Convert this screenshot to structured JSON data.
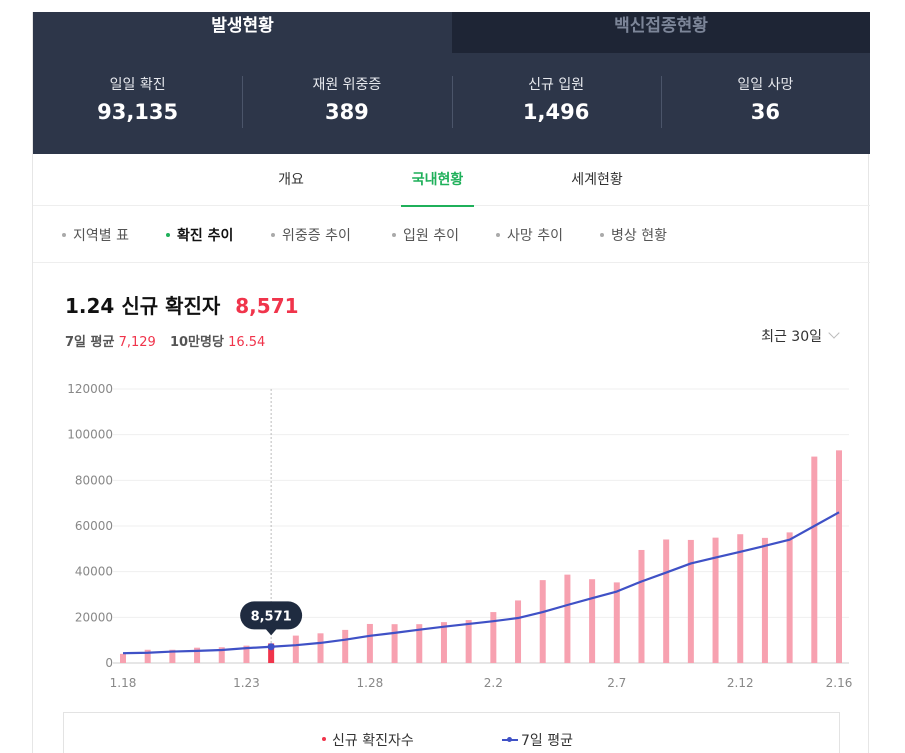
{
  "header": {
    "tabs": [
      {
        "label": "발생현황",
        "active": true
      },
      {
        "label": "백신접종현황",
        "active": false
      }
    ],
    "stats": [
      {
        "label": "일일 확진",
        "value": "93,135"
      },
      {
        "label": "재원 위중증",
        "value": "389"
      },
      {
        "label": "신규 입원",
        "value": "1,496"
      },
      {
        "label": "일일 사망",
        "value": "36"
      }
    ]
  },
  "subtabs": [
    {
      "label": "개요",
      "active": false
    },
    {
      "label": "국내현황",
      "active": true
    },
    {
      "label": "세계현황",
      "active": false
    }
  ],
  "filters": [
    {
      "label": "지역별 표",
      "active": false
    },
    {
      "label": "확진 추이",
      "active": true
    },
    {
      "label": "위중증 추이",
      "active": false
    },
    {
      "label": "입원 추이",
      "active": false
    },
    {
      "label": "사망 추이",
      "active": false
    },
    {
      "label": "병상 현황",
      "active": false
    }
  ],
  "summary": {
    "date": "1.24",
    "title": "신규 확진자",
    "value": "8,571",
    "avg_label": "7일 평균",
    "avg_value": "7,129",
    "per_label": "10만명당",
    "per_value": "16.54"
  },
  "range_selector": {
    "label": "최근 30일"
  },
  "colors": {
    "header_bg": "#2d3649",
    "accent_green": "#1fb05a",
    "highlight_red": "#f0344b",
    "bar_pink": "#f7a1b0",
    "line_blue": "#3f51c6",
    "tooltip_bg": "#1f2b40"
  },
  "chart_data": {
    "type": "bar",
    "categories": [
      "1.18",
      "1.19",
      "1.20",
      "1.21",
      "1.22",
      "1.23",
      "1.24",
      "1.25",
      "1.26",
      "1.27",
      "1.28",
      "1.29",
      "1.30",
      "1.31",
      "2.1",
      "2.2",
      "2.3",
      "2.4",
      "2.5",
      "2.6",
      "2.7",
      "2.8",
      "2.9",
      "2.10",
      "2.11",
      "2.12",
      "2.13",
      "2.14",
      "2.15",
      "2.16"
    ],
    "x_tick_labels": [
      "1.18",
      "1.23",
      "1.28",
      "2.2",
      "2.7",
      "2.12",
      "2.16"
    ],
    "series": [
      {
        "name": "신규 확진자수",
        "type": "bar",
        "values": [
          4000,
          5800,
          5800,
          6700,
          6900,
          7600,
          8571,
          12000,
          13000,
          14500,
          17100,
          17000,
          17000,
          17900,
          18800,
          22300,
          27400,
          36300,
          38700,
          36700,
          35300,
          49500,
          54100,
          53900,
          54900,
          56400,
          54800,
          57200,
          90400,
          93135
        ]
      },
      {
        "name": "7일 평균",
        "type": "line",
        "values": [
          4300,
          4500,
          5000,
          5300,
          5700,
          6500,
          7129,
          7800,
          8800,
          10200,
          11900,
          13200,
          14600,
          15900,
          17100,
          18300,
          19700,
          22300,
          25400,
          28400,
          31300,
          35700,
          39600,
          43600,
          46200,
          48700,
          51300,
          54000,
          60000,
          66000
        ]
      }
    ],
    "highlight": {
      "category": "1.24",
      "label": "8,571"
    },
    "ylim": [
      0,
      120000
    ],
    "y_ticks": [
      0,
      20000,
      40000,
      60000,
      80000,
      100000,
      120000
    ],
    "grid": true,
    "legend": "bottom"
  }
}
